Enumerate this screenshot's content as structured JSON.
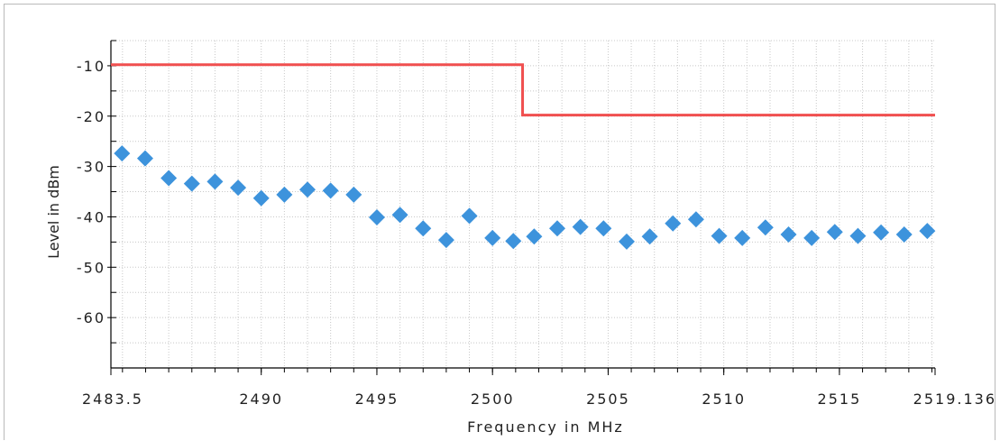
{
  "chart_data": {
    "type": "scatter",
    "xlabel": "Frequency in MHz",
    "ylabel": "Level in dBm",
    "xlim": [
      2483.5,
      2519.136
    ],
    "ylim": [
      -70,
      -5
    ],
    "x_ticks": [
      2483.5,
      2490,
      2495,
      2500,
      2505,
      2510,
      2515,
      2519.136
    ],
    "x_tick_labels": [
      "2483.5",
      "2490",
      "2495",
      "2500",
      "2505",
      "2510",
      "2515",
      "2519.136"
    ],
    "x_minor_step": 1,
    "y_ticks": [
      -10,
      -20,
      -30,
      -40,
      -50,
      -60
    ],
    "y_tick_labels": [
      "-10",
      "-20",
      "-30",
      "-40",
      "-50",
      "-60"
    ],
    "y_minor_step": 5,
    "grid": true,
    "series": [
      {
        "kind": "limit-line",
        "color": "#f04f4f",
        "x": [
          2483.5,
          2501.3,
          2501.3,
          2519.136
        ],
        "y": [
          -9.8,
          -9.8,
          -19.8,
          -19.8
        ]
      },
      {
        "kind": "markers",
        "marker": "diamond",
        "color": "#3d93dc",
        "x": [
          2483.98,
          2484.98,
          2486.0,
          2487.0,
          2488.0,
          2489.0,
          2490.0,
          2491.0,
          2492.0,
          2493.0,
          2494.0,
          2495.0,
          2496.0,
          2497.0,
          2498.0,
          2499.0,
          2500.0,
          2500.9,
          2501.8,
          2502.8,
          2503.8,
          2504.8,
          2505.8,
          2506.8,
          2507.8,
          2508.8,
          2509.8,
          2510.8,
          2511.8,
          2512.8,
          2513.8,
          2514.8,
          2515.8,
          2516.8,
          2517.8,
          2518.8
        ],
        "y": [
          -27.4,
          -28.4,
          -32.3,
          -33.4,
          -33.0,
          -34.2,
          -36.3,
          -35.6,
          -34.6,
          -34.8,
          -35.6,
          -40.1,
          -39.6,
          -42.3,
          -44.6,
          -39.8,
          -44.2,
          -44.8,
          -43.9,
          -42.3,
          -42.0,
          -42.3,
          -44.9,
          -43.9,
          -41.3,
          -40.5,
          -43.8,
          -44.2,
          -42.1,
          -43.5,
          -44.2,
          -43.0,
          -43.8,
          -43.1,
          -43.5,
          -42.8
        ]
      }
    ]
  }
}
